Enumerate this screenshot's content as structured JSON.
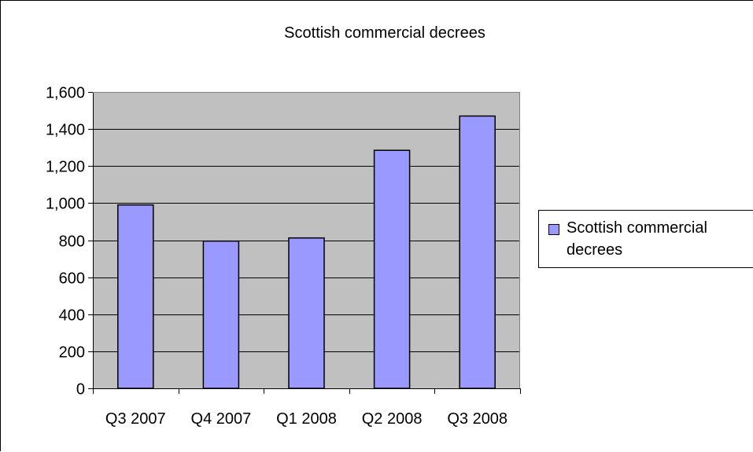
{
  "chart_data": {
    "type": "bar",
    "title": "Scottish commercial decrees",
    "categories": [
      "Q3 2007",
      "Q4 2007",
      "Q1 2008",
      "Q2 2008",
      "Q3 2008"
    ],
    "series": [
      {
        "name": "Scottish commercial decrees",
        "values": [
          990,
          795,
          812,
          1285,
          1470
        ],
        "color": "#9999ff"
      }
    ],
    "xlabel": "",
    "ylabel": "",
    "ylim": [
      0,
      1600
    ],
    "yticks": [
      0,
      200,
      400,
      600,
      800,
      1000,
      1200,
      1400,
      1600
    ],
    "yticklabels": [
      "0",
      "200",
      "400",
      "600",
      "800",
      "1,000",
      "1,200",
      "1,400",
      "1,600"
    ],
    "grid": true,
    "plot_background": "#c0c0c0",
    "legend_position": "right"
  }
}
